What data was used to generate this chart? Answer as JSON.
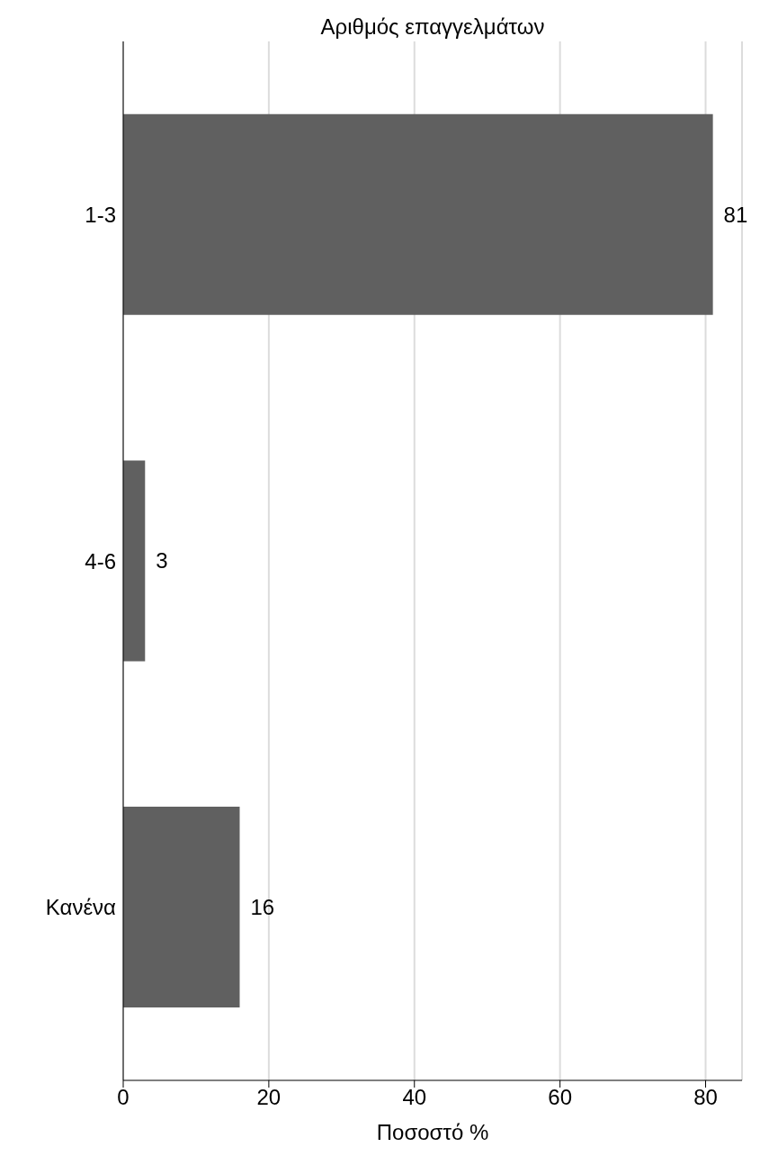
{
  "chart_data": {
    "type": "bar",
    "orientation": "horizontal",
    "title": "Αριθμός επαγγελμάτων",
    "xlabel": "Ποσοστό %",
    "categories": [
      "1-3",
      "4-6",
      "Κανένα"
    ],
    "values": [
      81,
      3,
      16
    ],
    "color": "#606060",
    "xlim": [
      0,
      85
    ],
    "xticks": [
      0,
      20,
      40,
      60,
      80
    ],
    "grid": "x",
    "data_labels": true
  }
}
